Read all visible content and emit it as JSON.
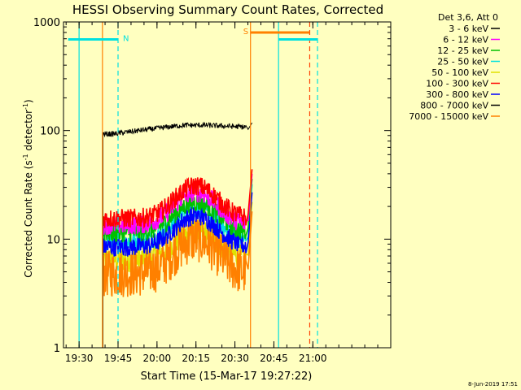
{
  "chart_data": {
    "type": "line",
    "title": "HESSI Observing Summary Count Rates, Corrected",
    "xlabel": "Start Time (15-Mar-17 19:27:22)",
    "ylabel_main": "Corrected Count Rate (s",
    "ylabel_exp1": "-1",
    "ylabel_mid": " detector",
    "ylabel_exp2": "-1",
    "ylabel_end": ")",
    "yscale": "log",
    "ylim": [
      1,
      1000
    ],
    "xlim_minutes": [
      19.4,
      21.5
    ],
    "x_ticks": [
      {
        "value": 19.5,
        "label": "19:30"
      },
      {
        "value": 19.75,
        "label": "19:45"
      },
      {
        "value": 20.0,
        "label": "20:00"
      },
      {
        "value": 20.25,
        "label": "20:15"
      },
      {
        "value": 20.5,
        "label": "20:30"
      },
      {
        "value": 20.75,
        "label": "20:45"
      },
      {
        "value": 21.0,
        "label": "21:00"
      }
    ],
    "y_ticks": [
      {
        "value": 1,
        "label": "1"
      },
      {
        "value": 10,
        "label": "10"
      },
      {
        "value": 100,
        "label": "100"
      },
      {
        "value": 1000,
        "label": "1000"
      }
    ],
    "legend_header": "Det 3,6, Att 0",
    "series": [
      {
        "name": "3 - 6 keV",
        "color": "#000000",
        "base": 93,
        "peak": 112,
        "end": 118
      },
      {
        "name": "6 - 12 keV",
        "color": "#ff00ff",
        "base": 13.5,
        "peak": 27,
        "end": 40
      },
      {
        "name": "12 - 25 keV",
        "color": "#00c000",
        "base": 11.5,
        "peak": 22,
        "end": 36
      },
      {
        "name": "25 - 50 keV",
        "color": "#00e0e0",
        "base": 9.5,
        "peak": 19,
        "end": 32
      },
      {
        "name": "50 - 100 keV",
        "color": "#e0e000",
        "base": 6.5,
        "peak": 12,
        "end": 22
      },
      {
        "name": "100 - 300 keV",
        "color": "#ff0000",
        "base": 15.5,
        "peak": 31,
        "end": 44
      },
      {
        "name": "300 - 800 keV",
        "color": "#0000ff",
        "base": 8.5,
        "peak": 16.5,
        "end": 27
      },
      {
        "name": "800 - 7000 keV",
        "color": "#000000",
        "base": 0,
        "peak": 0,
        "end": 0
      },
      {
        "name": "7000 - 15000 keV",
        "color": "#ff8000",
        "base": 4.8,
        "peak": 10,
        "end": 18
      }
    ],
    "data_start": 19.65,
    "data_end": 20.6,
    "peak_time": 20.25,
    "markers": [
      {
        "type": "solid",
        "color": "#ff8000",
        "x": 19.65
      },
      {
        "type": "solid",
        "color": "#ff8000",
        "x": 20.6
      },
      {
        "type": "solid",
        "color": "#00e0e0",
        "x": 19.5
      },
      {
        "type": "solid",
        "color": "#00e0e0",
        "x": 20.78
      },
      {
        "type": "dashed",
        "color": "#00e0e0",
        "x": 19.75
      },
      {
        "type": "dashed",
        "color": "#00e0e0",
        "x": 21.03
      },
      {
        "type": "dashed",
        "color": "#ff4000",
        "x": 20.98
      }
    ],
    "bars": [
      {
        "color": "#00e0e0",
        "x1": 19.43,
        "x2": 19.75,
        "label": "N",
        "y": 690
      },
      {
        "color": "#00e0e0",
        "x1": 20.78,
        "x2": 21.03,
        "label": "",
        "y": 690
      },
      {
        "color": "#ff8000",
        "x1": 20.6,
        "x2": 20.98,
        "label": "S",
        "y": 800
      }
    ],
    "footer_date": "8-Jun-2019 17:51"
  }
}
